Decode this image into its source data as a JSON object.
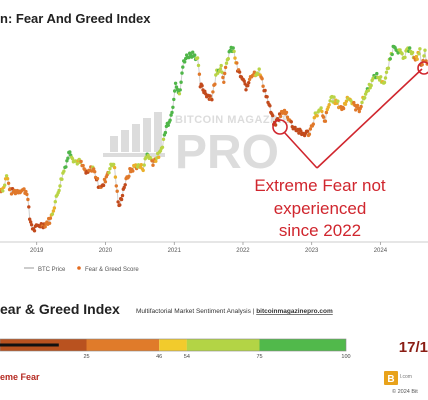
{
  "header": {
    "title": "n: Fear And Greed Index"
  },
  "watermark": {
    "line1": "BITCOIN MAGAZINE",
    "line2": "PRO"
  },
  "annotation": {
    "lines": [
      "Extreme Fear not",
      "experienced",
      "since 2022"
    ],
    "color": "#d0262e"
  },
  "legend": {
    "price_label": "BTC Price",
    "score_label": "Fear & Greed Score"
  },
  "chart_data": {
    "type": "scatter",
    "x_ticks": [
      "2019",
      "2020",
      "2021",
      "2022",
      "2023",
      "2024"
    ],
    "price_points": [
      [
        "2018-06-20",
        6500,
        45
      ],
      [
        "2018-07-10",
        6700,
        50
      ],
      [
        "2018-07-25",
        8200,
        60
      ],
      [
        "2018-08-15",
        6300,
        25
      ],
      [
        "2018-09-10",
        6300,
        30
      ],
      [
        "2018-10-10",
        6500,
        35
      ],
      [
        "2018-11-10",
        6300,
        30
      ],
      [
        "2018-11-25",
        4000,
        10
      ],
      [
        "2018-12-15",
        3300,
        8
      ],
      [
        "2019-01-15",
        3600,
        20
      ],
      [
        "2019-02-15",
        3650,
        25
      ],
      [
        "2019-03-15",
        3950,
        40
      ],
      [
        "2019-04-05",
        5000,
        60
      ],
      [
        "2019-05-15",
        8000,
        75
      ],
      [
        "2019-06-26",
        12500,
        90
      ],
      [
        "2019-07-20",
        10500,
        60
      ],
      [
        "2019-08-20",
        10300,
        50
      ],
      [
        "2019-09-25",
        8400,
        20
      ],
      [
        "2019-10-26",
        9500,
        50
      ],
      [
        "2019-11-25",
        7100,
        20
      ],
      [
        "2019-12-18",
        6800,
        20
      ],
      [
        "2020-01-15",
        8800,
        50
      ],
      [
        "2020-02-14",
        10300,
        70
      ],
      [
        "2020-03-13",
        4800,
        8
      ],
      [
        "2020-04-10",
        6900,
        20
      ],
      [
        "2020-05-10",
        8800,
        40
      ],
      [
        "2020-06-10",
        9700,
        50
      ],
      [
        "2020-07-20",
        9400,
        55
      ],
      [
        "2020-08-10",
        11800,
        80
      ],
      [
        "2020-09-10",
        10300,
        45
      ],
      [
        "2020-10-20",
        12000,
        60
      ],
      [
        "2020-11-20",
        18500,
        90
      ],
      [
        "2020-12-20",
        23500,
        92
      ],
      [
        "2021-01-08",
        40000,
        95
      ],
      [
        "2021-01-28",
        31000,
        70
      ],
      [
        "2021-02-20",
        56000,
        94
      ],
      [
        "2021-03-13",
        61000,
        90
      ],
      [
        "2021-04-14",
        63500,
        85
      ],
      [
        "2021-05-05",
        57000,
        65
      ],
      [
        "2021-05-19",
        37000,
        20
      ],
      [
        "2021-06-22",
        32000,
        15
      ],
      [
        "2021-07-20",
        30000,
        20
      ],
      [
        "2021-08-15",
        47000,
        70
      ],
      [
        "2021-09-07",
        51000,
        75
      ],
      [
        "2021-09-21",
        41000,
        30
      ],
      [
        "2021-10-20",
        65000,
        85
      ],
      [
        "2021-11-10",
        68000,
        80
      ],
      [
        "2021-12-04",
        48000,
        20
      ],
      [
        "2022-01-22",
        35000,
        10
      ],
      [
        "2022-02-10",
        44000,
        40
      ],
      [
        "2022-03-28",
        47000,
        60
      ],
      [
        "2022-05-09",
        30000,
        10
      ],
      [
        "2022-06-18",
        19000,
        6
      ],
      [
        "2022-07-20",
        23000,
        30
      ],
      [
        "2022-08-15",
        24000,
        40
      ],
      [
        "2022-09-20",
        19000,
        20
      ],
      [
        "2022-11-09",
        16500,
        12
      ],
      [
        "2022-12-20",
        16800,
        25
      ],
      [
        "2023-01-20",
        22500,
        55
      ],
      [
        "2023-02-20",
        24500,
        60
      ],
      [
        "2023-03-10",
        20000,
        35
      ],
      [
        "2023-04-14",
        30500,
        65
      ],
      [
        "2023-06-15",
        25000,
        40
      ],
      [
        "2023-07-14",
        31000,
        60
      ],
      [
        "2023-08-18",
        26000,
        40
      ],
      [
        "2023-09-11",
        25000,
        40
      ],
      [
        "2023-10-24",
        34500,
        70
      ],
      [
        "2023-12-08",
        44000,
        75
      ],
      [
        "2024-01-23",
        39000,
        50
      ],
      [
        "2024-02-28",
        62000,
        80
      ],
      [
        "2024-03-14",
        73000,
        88
      ],
      [
        "2024-04-20",
        63000,
        70
      ],
      [
        "2024-05-01",
        57000,
        55
      ],
      [
        "2024-06-05",
        71000,
        78
      ],
      [
        "2024-07-05",
        55000,
        35
      ],
      [
        "2024-07-29",
        68000,
        70
      ],
      [
        "2024-08-05",
        50000,
        25
      ],
      [
        "2024-08-25",
        64000,
        60
      ],
      [
        "2024-09-06",
        53000,
        30
      ]
    ]
  },
  "gauge": {
    "title": "ear & Greed Index",
    "subtitle_left": "Multifactorial Market Sentiment Analysis | ",
    "subtitle_link": "bitcoinmagazinepro.com",
    "ticks": [
      "25",
      "46",
      "54",
      "75",
      "100"
    ],
    "segments": [
      {
        "color": "#b9521f"
      },
      {
        "color": "#e07b2a"
      },
      {
        "color": "#f2cb2c"
      },
      {
        "color": "#b3d445"
      },
      {
        "color": "#51b94b"
      }
    ],
    "pointer_value": 17,
    "value_text": "17/1",
    "status_text": "eme Fear",
    "status_color": "#b52a22"
  },
  "footer": {
    "logo_text": "B",
    "small_text": "l.com",
    "copyright": "© 2024 Bit"
  }
}
